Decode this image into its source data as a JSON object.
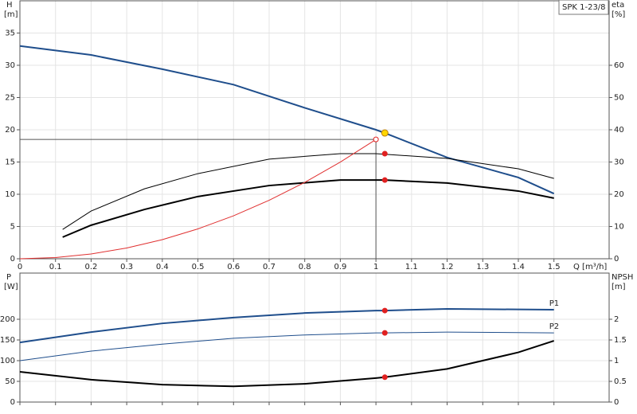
{
  "chart_data": [
    {
      "type": "line",
      "y_label": "H",
      "y_unit": "[m]",
      "y2_label": "eta",
      "y2_unit": "[%]",
      "x_label": "Q [m³/h]",
      "legend_box": "SPK 1-23/8",
      "xlim": [
        0,
        1.655
      ],
      "ylim": [
        0,
        40
      ],
      "y2lim": [
        0,
        80
      ],
      "xticks": [
        0,
        0.1,
        0.2,
        0.3,
        0.4,
        0.5,
        0.6,
        0.7,
        0.8,
        0.9,
        1.0,
        1.1,
        1.2,
        1.3,
        1.4,
        1.5
      ],
      "yticks": [
        0,
        5,
        10,
        15,
        20,
        25,
        30,
        35
      ],
      "y2ticks": [
        0,
        10,
        20,
        30,
        40,
        50,
        60
      ],
      "grid": true,
      "series": [
        {
          "color": "#1f4e8c",
          "width": 2,
          "x": [
            0,
            0.2,
            0.4,
            0.6,
            0.8,
            1.0,
            1.025,
            1.2,
            1.4,
            1.5
          ],
          "values": [
            33.0,
            31.6,
            29.4,
            27.0,
            23.4,
            20.0,
            19.5,
            15.7,
            12.6,
            10.1
          ]
        },
        {
          "color": "#000000",
          "width": 1,
          "axis": "y2",
          "x": [
            0.12,
            0.2,
            0.35,
            0.5,
            0.7,
            0.9,
            1.0,
            1.2,
            1.4,
            1.5
          ],
          "values": [
            9.1,
            14.8,
            21.7,
            26.4,
            30.9,
            32.6,
            32.6,
            31.1,
            27.9,
            24.9
          ]
        },
        {
          "color": "#000000",
          "width": 2,
          "axis": "y2",
          "x": [
            0.12,
            0.2,
            0.35,
            0.5,
            0.7,
            0.9,
            1.025,
            1.2,
            1.4,
            1.5
          ],
          "values": [
            6.7,
            10.4,
            15.3,
            19.3,
            22.7,
            24.4,
            24.4,
            23.5,
            21.0,
            18.8
          ]
        },
        {
          "color": "#e03030",
          "width": 1,
          "x": [
            0,
            0.1,
            0.2,
            0.3,
            0.4,
            0.5,
            0.6,
            0.7,
            0.8,
            0.9,
            1.0
          ],
          "values": [
            0,
            0.19,
            0.74,
            1.67,
            2.96,
            4.63,
            6.66,
            9.07,
            11.84,
            14.99,
            18.5
          ]
        }
      ],
      "duty_point": {
        "x": 1.0,
        "y": 18.5
      },
      "points": [
        {
          "x": 1.025,
          "y": 19.5,
          "color": "#ffd700"
        },
        {
          "x": 1.025,
          "y": 32.6,
          "axis": "y2",
          "color": "#e02020"
        },
        {
          "x": 1.025,
          "y": 24.4,
          "axis": "y2",
          "color": "#e02020"
        },
        {
          "x": 1.0,
          "y": 18.5,
          "color": "#ffffff"
        }
      ]
    },
    {
      "type": "line",
      "y_label": "P",
      "y_unit": "[W]",
      "y2_label": "NPSH",
      "y2_unit": "[m]",
      "xlim": [
        0,
        1.655
      ],
      "ylim": [
        0,
        311.5
      ],
      "y2lim": [
        0,
        3.115
      ],
      "yticks": [
        0,
        50,
        100,
        150,
        200
      ],
      "y2ticks": [
        0,
        0.5,
        1,
        1.5,
        2
      ],
      "grid": true,
      "series": [
        {
          "name": "P1",
          "color": "#1f4e8c",
          "width": 2,
          "x": [
            0,
            0.2,
            0.4,
            0.6,
            0.8,
            1.0,
            1.025,
            1.2,
            1.5
          ],
          "values": [
            144,
            169,
            190,
            204,
            215,
            221,
            221,
            225,
            223
          ]
        },
        {
          "name": "P2",
          "color": "#1f4e8c",
          "width": 1,
          "x": [
            0,
            0.2,
            0.4,
            0.6,
            0.8,
            1.0,
            1.025,
            1.2,
            1.5
          ],
          "values": [
            100,
            123,
            140,
            154,
            162,
            167,
            167,
            169,
            167
          ]
        },
        {
          "color": "#000000",
          "width": 2,
          "axis": "y2",
          "x": [
            0,
            0.2,
            0.4,
            0.6,
            0.8,
            1.0,
            1.025,
            1.2,
            1.4,
            1.5
          ],
          "values": [
            0.73,
            0.54,
            0.42,
            0.38,
            0.44,
            0.58,
            0.6,
            0.8,
            1.2,
            1.48
          ]
        }
      ],
      "points": [
        {
          "x": 1.025,
          "y": 221,
          "color": "#e02020"
        },
        {
          "x": 1.025,
          "y": 167,
          "color": "#e02020"
        },
        {
          "x": 1.025,
          "y": 0.6,
          "axis": "y2",
          "color": "#e02020"
        }
      ]
    }
  ]
}
